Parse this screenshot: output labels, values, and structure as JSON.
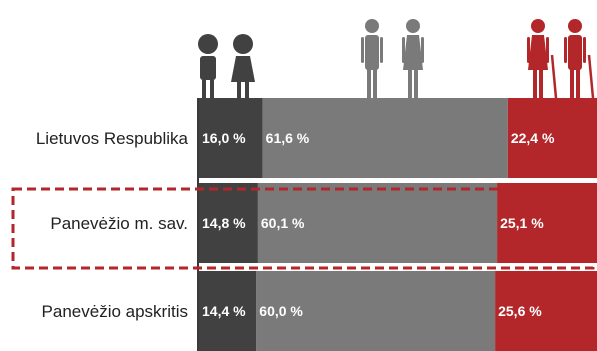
{
  "chart_data": {
    "type": "bar",
    "orientation": "horizontal",
    "stacked": true,
    "percent_scale": true,
    "categories": [
      "Lietuvos Respublika",
      "Panevėžio m. sav.",
      "Panevėžio apskritis"
    ],
    "highlighted_category": "Panevėžio m. sav.",
    "series": [
      {
        "icon": "children-icon",
        "color": "#414141",
        "values": [
          16.0,
          14.8,
          14.4
        ],
        "labels": [
          "16,0 %",
          "14,8 %",
          "14,4 %"
        ]
      },
      {
        "icon": "adults-icon",
        "color": "#7a7a7a",
        "values": [
          61.6,
          60.1,
          60.0
        ],
        "labels": [
          "61,6 %",
          "60,1 %",
          "60,0 %"
        ]
      },
      {
        "icon": "elderly-icon",
        "color": "#b3262a",
        "values": [
          22.4,
          25.1,
          25.6
        ],
        "labels": [
          "22,4 %",
          "25,1 %",
          "25,6 %"
        ]
      }
    ],
    "xlim": [
      0,
      100
    ],
    "legend": "icons-above-bars",
    "grid": false
  }
}
